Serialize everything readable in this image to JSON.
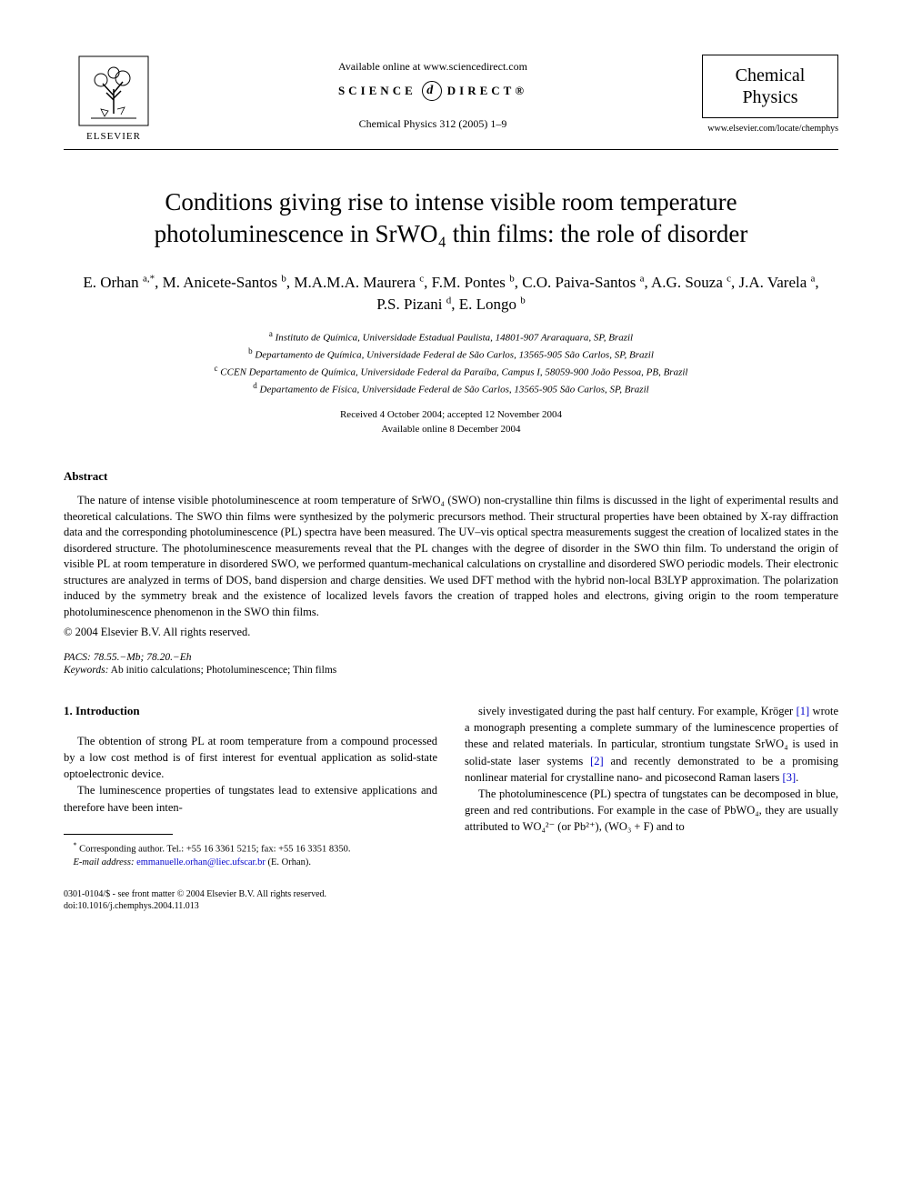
{
  "header": {
    "publisher": "ELSEVIER",
    "available_online": "Available online at www.sciencedirect.com",
    "sciencedirect_left": "SCIENCE",
    "sciencedirect_d": "d",
    "sciencedirect_right": "DIRECT®",
    "journal_ref": "Chemical Physics 312 (2005) 1–9",
    "journal_name_1": "Chemical",
    "journal_name_2": "Physics",
    "journal_url": "www.elsevier.com/locate/chemphys"
  },
  "title": "Conditions giving rise to intense visible room temperature photoluminescence in SrWO₄ thin films: the role of disorder",
  "authors_html": "E. Orhan <sup>a,*</sup>, M. Anicete-Santos <sup>b</sup>, M.A.M.A. Maurera <sup>c</sup>, F.M. Pontes <sup>b</sup>, C.O. Paiva-Santos <sup>a</sup>, A.G. Souza <sup>c</sup>, J.A. Varela <sup>a</sup>, P.S. Pizani <sup>d</sup>, E. Longo <sup>b</sup>",
  "affiliations": {
    "a": "Instituto de Química, Universidade Estadual Paulista, 14801-907 Araraquara, SP, Brazil",
    "b": "Departamento de Química, Universidade Federal de São Carlos, 13565-905 São Carlos, SP, Brazil",
    "c": "CCEN Departamento de Química, Universidade Federal da Paraíba, Campus I, 58059-900 João Pessoa, PB, Brazil",
    "d": "Departamento de Física, Universidade Federal de São Carlos, 13565-905 São Carlos, SP, Brazil"
  },
  "dates": {
    "received": "Received 4 October 2004; accepted 12 November 2004",
    "available": "Available online 8 December 2004"
  },
  "abstract": {
    "heading": "Abstract",
    "text": "The nature of intense visible photoluminescence at room temperature of SrWO₄ (SWO) non-crystalline thin films is discussed in the light of experimental results and theoretical calculations. The SWO thin films were synthesized by the polymeric precursors method. Their structural properties have been obtained by X-ray diffraction data and the corresponding photoluminescence (PL) spectra have been measured. The UV–vis optical spectra measurements suggest the creation of localized states in the disordered structure. The photoluminescence measurements reveal that the PL changes with the degree of disorder in the SWO thin film. To understand the origin of visible PL at room temperature in disordered SWO, we performed quantum-mechanical calculations on crystalline and disordered SWO periodic models. Their electronic structures are analyzed in terms of DOS, band dispersion and charge densities. We used DFT method with the hybrid non-local B3LYP approximation. The polarization induced by the symmetry break and the existence of localized levels favors the creation of trapped holes and electrons, giving origin to the room temperature photoluminescence phenomenon in the SWO thin films.",
    "copyright": "© 2004 Elsevier B.V. All rights reserved."
  },
  "pacs": "PACS: 78.55.−Mb; 78.20.−Eh",
  "keywords_label": "Keywords:",
  "keywords": " Ab initio calculations; Photoluminescence; Thin films",
  "intro": {
    "heading": "1. Introduction",
    "p1": "The obtention of strong PL at room temperature from a compound processed by a low cost method is of first interest for eventual application as solid-state optoelectronic device.",
    "p2": "The luminescence properties of tungstates lead to extensive applications and therefore have been inten-",
    "p3_html": "sively investigated during the past half century. For example, Kröger <span class=\"ref-link\">[1]</span> wrote a monograph presenting a complete summary of the luminescence properties of these and related materials. In particular, strontium tungstate SrWO₄ is used in solid-state laser systems <span class=\"ref-link\">[2]</span> and recently demonstrated to be a promising nonlinear material for crystalline nano- and picosecond Raman lasers <span class=\"ref-link\">[3]</span>.",
    "p4_html": "The photoluminescence (PL) spectra of tungstates can be decomposed in blue, green and red contributions. For example in the case of PbWO₄, they are usually attributed to WO₄²⁻ (or Pb²⁺), (WO₃ + F) and to"
  },
  "footnote": {
    "corr": "Corresponding author. Tel.: +55 16 3361 5215; fax: +55 16 3351 8350.",
    "email_label": "E-mail address:",
    "email": "emmanuelle.orhan@liec.ufscar.br",
    "email_name": "(E. Orhan)."
  },
  "bottom": {
    "line1": "0301-0104/$ - see front matter © 2004 Elsevier B.V. All rights reserved.",
    "line2": "doi:10.1016/j.chemphys.2004.11.013"
  }
}
